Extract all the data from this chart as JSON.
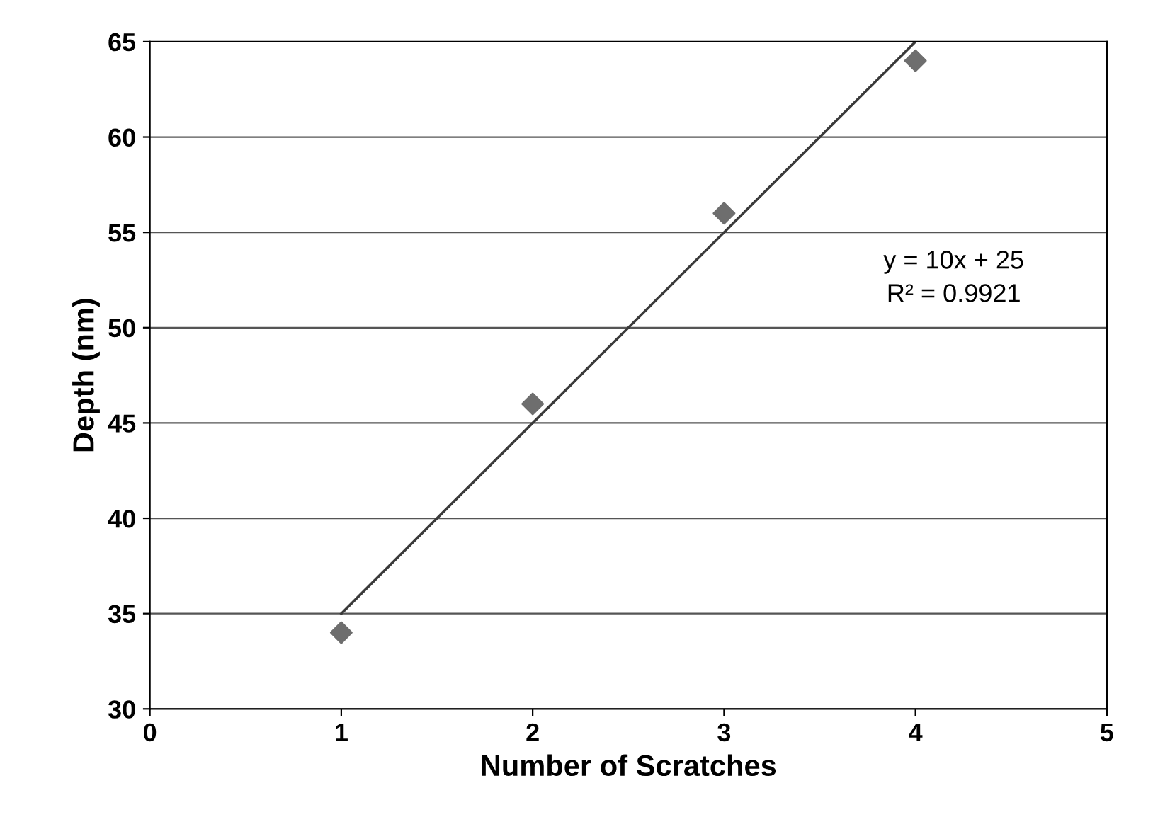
{
  "chart_data": {
    "type": "scatter",
    "xlabel": "Number of Scratches",
    "ylabel": "Depth (nm)",
    "x": [
      1,
      2,
      3,
      4
    ],
    "series": [
      {
        "color": "#6e6e6e",
        "values": [
          34,
          46,
          56,
          64
        ],
        "marker": "diamond"
      },
      {
        "type": "line",
        "color": "#3a3a3a",
        "x": [
          1,
          4
        ],
        "values": [
          35,
          65
        ],
        "marker": "none"
      }
    ],
    "xlim": [
      0,
      5
    ],
    "xticks": [
      0,
      1,
      2,
      3,
      4,
      5
    ],
    "ylim": [
      30,
      65
    ],
    "yticks": [
      30,
      35,
      40,
      45,
      50,
      55,
      60,
      65
    ],
    "grid": "y",
    "legend": false,
    "annotations": [
      "y = 10x + 25",
      "R² = 0.9921"
    ]
  }
}
